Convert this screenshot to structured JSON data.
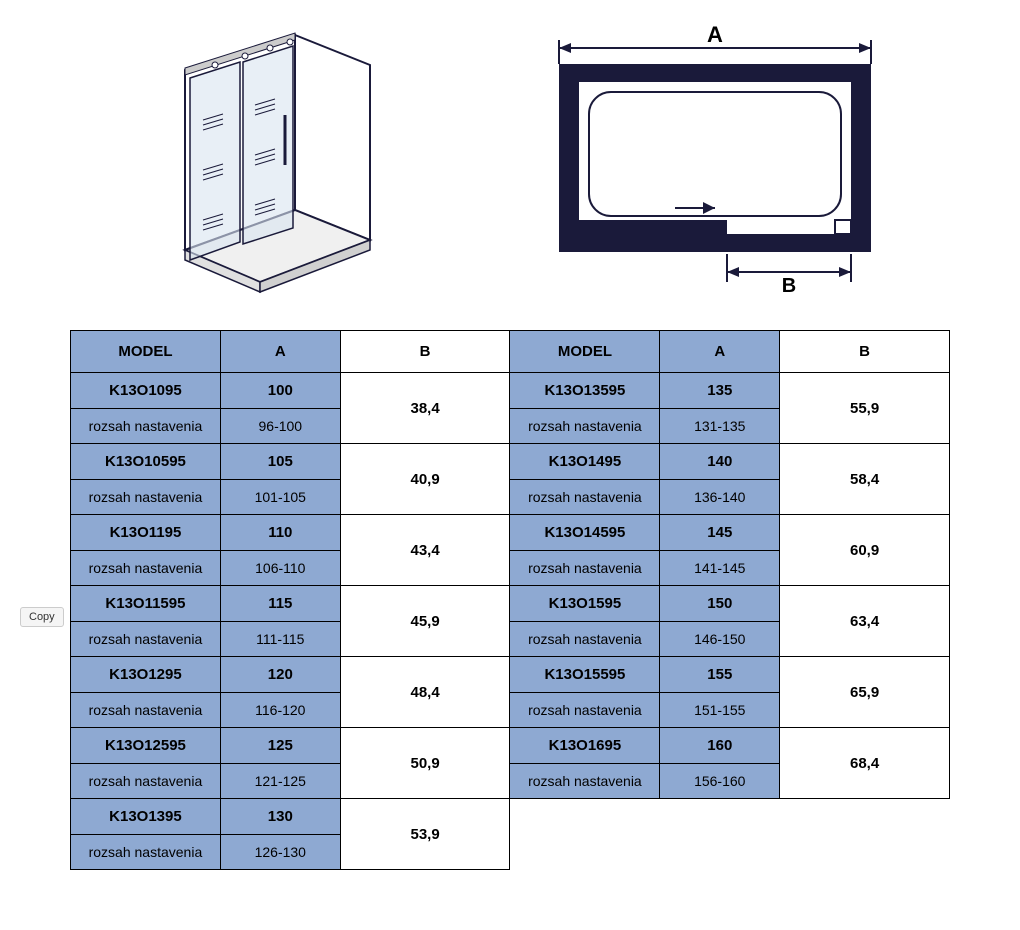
{
  "copy_button_label": "Copy",
  "headers": {
    "model": "MODEL",
    "a": "A",
    "b": "B"
  },
  "range_label": "rozsah nastavenia",
  "diagram_labels": {
    "a": "A",
    "b": "B"
  },
  "colors": {
    "header_bg": "#8ea9d2",
    "model_bg": "#8ea9d2",
    "a_bg": "#8ea9d2",
    "b_bg": "#ffffff",
    "border": "#000000",
    "diagram_dark": "#1a1a3a",
    "diagram_glass": "#d8e4f0"
  },
  "rows_left": [
    {
      "model": "K13O1095",
      "a": "100",
      "range": "96-100",
      "b": "38,4"
    },
    {
      "model": "K13O10595",
      "a": "105",
      "range": "101-105",
      "b": "40,9"
    },
    {
      "model": "K13O1195",
      "a": "110",
      "range": "106-110",
      "b": "43,4"
    },
    {
      "model": "K13O11595",
      "a": "115",
      "range": "111-115",
      "b": "45,9"
    },
    {
      "model": "K13O1295",
      "a": "120",
      "range": "116-120",
      "b": "48,4"
    },
    {
      "model": "K13O12595",
      "a": "125",
      "range": "121-125",
      "b": "50,9"
    },
    {
      "model": "K13O1395",
      "a": "130",
      "range": "126-130",
      "b": "53,9"
    }
  ],
  "rows_right": [
    {
      "model": "K13O13595",
      "a": "135",
      "range": "131-135",
      "b": "55,9"
    },
    {
      "model": "K13O1495",
      "a": "140",
      "range": "136-140",
      "b": "58,4"
    },
    {
      "model": "K13O14595",
      "a": "145",
      "range": "141-145",
      "b": "60,9"
    },
    {
      "model": "K13O1595",
      "a": "150",
      "range": "146-150",
      "b": "63,4"
    },
    {
      "model": "K13O15595",
      "a": "155",
      "range": "151-155",
      "b": "65,9"
    },
    {
      "model": "K13O1695",
      "a": "160",
      "range": "156-160",
      "b": "68,4"
    }
  ]
}
